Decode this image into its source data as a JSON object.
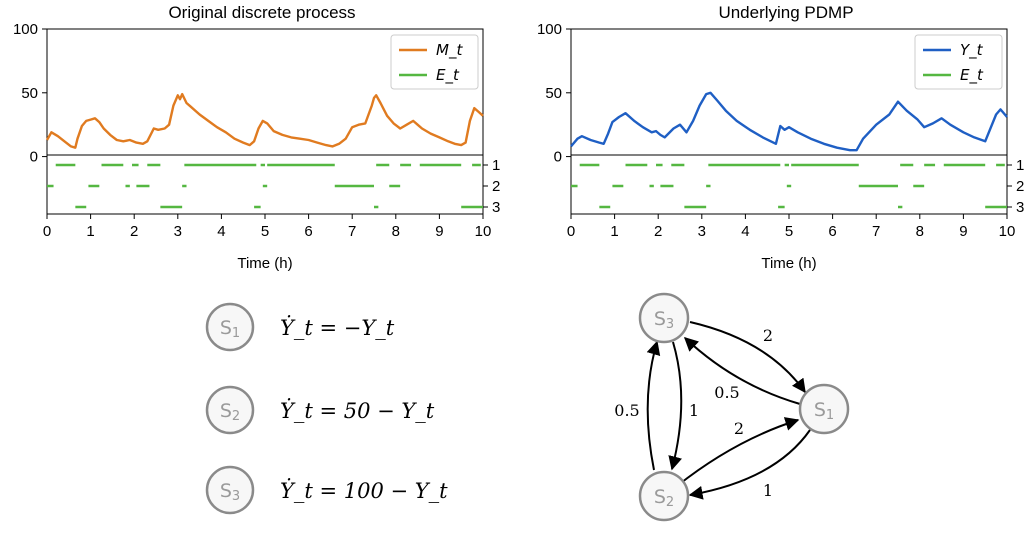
{
  "chart_data": [
    {
      "type": "line",
      "title": "Original discrete process",
      "xlabel": "Time (h)",
      "ylabel": "",
      "xlim": [
        0,
        10
      ],
      "ylim": [
        -45,
        100
      ],
      "x_ticks": [
        "0",
        "1",
        "2",
        "3",
        "4",
        "5",
        "6",
        "7",
        "8",
        "9",
        "10"
      ],
      "y_ticks": [
        "0",
        "50",
        "100"
      ],
      "legend_position": "top-right",
      "grid": false,
      "series": [
        {
          "name": "M_t",
          "color": "#e07b20",
          "x": [
            0,
            0.1,
            0.25,
            0.4,
            0.55,
            0.65,
            0.7,
            0.8,
            0.9,
            1.0,
            1.1,
            1.2,
            1.3,
            1.45,
            1.6,
            1.75,
            1.9,
            2.05,
            2.2,
            2.3,
            2.45,
            2.55,
            2.7,
            2.8,
            2.9,
            3.0,
            3.05,
            3.1,
            3.2,
            3.3,
            3.5,
            3.7,
            3.9,
            4.1,
            4.3,
            4.5,
            4.65,
            4.75,
            4.85,
            4.95,
            5.05,
            5.2,
            5.4,
            5.6,
            5.8,
            6.0,
            6.2,
            6.4,
            6.55,
            6.7,
            6.85,
            7.0,
            7.15,
            7.3,
            7.45,
            7.5,
            7.55,
            7.65,
            7.8,
            7.95,
            8.1,
            8.25,
            8.4,
            8.5,
            8.6,
            8.8,
            9.0,
            9.2,
            9.35,
            9.5,
            9.6,
            9.7,
            9.8,
            9.9,
            10.0
          ],
          "y": [
            13,
            19,
            16,
            12,
            8,
            7,
            14,
            24,
            28,
            29,
            30,
            27,
            22,
            17,
            13,
            12,
            13,
            11,
            10,
            12,
            22,
            21,
            22,
            25,
            40,
            48,
            45,
            49,
            42,
            39,
            33,
            28,
            23,
            19,
            14,
            11,
            9,
            12,
            22,
            28,
            26,
            20,
            17,
            15,
            14,
            13,
            11,
            9,
            8,
            10,
            14,
            23,
            25,
            26,
            40,
            46,
            48,
            42,
            32,
            26,
            22,
            25,
            28,
            25,
            22,
            18,
            15,
            12,
            10,
            9,
            11,
            28,
            38,
            35,
            32
          ]
        },
        {
          "name": "E_t",
          "color": "#55b741",
          "segments": [
            {
              "state": 1,
              "spans": [
                [
                  0.2,
                  0.65
                ],
                [
                  1.25,
                  1.75
                ],
                [
                  1.95,
                  2.1
                ],
                [
                  2.3,
                  2.6
                ],
                [
                  3.15,
                  4.8
                ],
                [
                  4.9,
                  5.0
                ],
                [
                  5.05,
                  6.6
                ],
                [
                  7.55,
                  7.85
                ],
                [
                  8.1,
                  8.35
                ],
                [
                  8.55,
                  9.5
                ],
                [
                  9.75,
                  9.95
                ]
              ]
            },
            {
              "state": 2,
              "spans": [
                [
                  0.0,
                  0.15
                ],
                [
                  0.95,
                  1.2
                ],
                [
                  1.8,
                  1.9
                ],
                [
                  2.05,
                  2.35
                ],
                [
                  3.1,
                  3.2
                ],
                [
                  4.95,
                  5.05
                ],
                [
                  6.6,
                  7.5
                ],
                [
                  7.85,
                  8.1
                ]
              ]
            },
            {
              "state": 3,
              "spans": [
                [
                  0.65,
                  0.9
                ],
                [
                  2.6,
                  3.1
                ],
                [
                  4.75,
                  4.9
                ],
                [
                  7.5,
                  7.6
                ],
                [
                  9.5,
                  10.0
                ]
              ]
            }
          ]
        }
      ],
      "state_labels": [
        "1",
        "2",
        "3"
      ]
    },
    {
      "type": "line",
      "title": "Underlying PDMP",
      "xlabel": "Time (h)",
      "ylabel": "",
      "xlim": [
        0,
        10
      ],
      "ylim": [
        -45,
        100
      ],
      "x_ticks": [
        "0",
        "1",
        "2",
        "3",
        "4",
        "5",
        "6",
        "7",
        "8",
        "9",
        "10"
      ],
      "y_ticks": [
        "0",
        "50",
        "100"
      ],
      "legend_position": "top-right",
      "grid": false,
      "series": [
        {
          "name": "Y_t",
          "color": "#1f5fc4",
          "x": [
            0,
            0.15,
            0.25,
            0.45,
            0.65,
            0.75,
            0.85,
            0.95,
            1.1,
            1.25,
            1.45,
            1.65,
            1.85,
            1.95,
            2.05,
            2.15,
            2.35,
            2.5,
            2.65,
            2.8,
            2.95,
            3.1,
            3.2,
            3.35,
            3.55,
            3.8,
            4.1,
            4.4,
            4.7,
            4.8,
            4.9,
            5.0,
            5.2,
            5.5,
            5.8,
            6.1,
            6.4,
            6.55,
            6.7,
            7.0,
            7.3,
            7.5,
            7.7,
            7.95,
            8.1,
            8.3,
            8.5,
            8.7,
            9.0,
            9.25,
            9.5,
            9.75,
            9.85,
            10.0
          ],
          "y": [
            8,
            14,
            16,
            13,
            11,
            10,
            18,
            27,
            31,
            34,
            28,
            23,
            19,
            20,
            17,
            15,
            22,
            25,
            19,
            28,
            40,
            49,
            50,
            44,
            36,
            28,
            21,
            15,
            10,
            24,
            21,
            23,
            19,
            14,
            10,
            7,
            5,
            5,
            14,
            25,
            33,
            43,
            36,
            29,
            23,
            26,
            30,
            25,
            19,
            15,
            12,
            33,
            37,
            31
          ]
        },
        {
          "name": "E_t",
          "color": "#55b741",
          "segments": [
            {
              "state": 1,
              "spans": [
                [
                  0.2,
                  0.65
                ],
                [
                  1.25,
                  1.75
                ],
                [
                  1.95,
                  2.1
                ],
                [
                  2.3,
                  2.6
                ],
                [
                  3.15,
                  4.8
                ],
                [
                  4.9,
                  5.0
                ],
                [
                  5.05,
                  6.6
                ],
                [
                  7.55,
                  7.85
                ],
                [
                  8.1,
                  8.35
                ],
                [
                  8.55,
                  9.5
                ],
                [
                  9.75,
                  9.95
                ]
              ]
            },
            {
              "state": 2,
              "spans": [
                [
                  0.0,
                  0.15
                ],
                [
                  0.95,
                  1.2
                ],
                [
                  1.8,
                  1.9
                ],
                [
                  2.05,
                  2.35
                ],
                [
                  3.1,
                  3.2
                ],
                [
                  4.95,
                  5.05
                ],
                [
                  6.6,
                  7.5
                ],
                [
                  7.85,
                  8.1
                ]
              ]
            },
            {
              "state": 3,
              "spans": [
                [
                  0.65,
                  0.9
                ],
                [
                  2.6,
                  3.1
                ],
                [
                  4.75,
                  4.9
                ],
                [
                  7.5,
                  7.6
                ],
                [
                  9.5,
                  10.0
                ]
              ]
            }
          ]
        }
      ],
      "state_labels": [
        "1",
        "2",
        "3"
      ]
    }
  ],
  "equations": [
    {
      "state": "S",
      "sub": "1",
      "text": "Ẏ_t = −Y_t"
    },
    {
      "state": "S",
      "sub": "2",
      "text": "Ẏ_t = 50 − Y_t"
    },
    {
      "state": "S",
      "sub": "3",
      "text": "Ẏ_t = 100 − Y_t"
    }
  ],
  "diagram": {
    "nodes": [
      {
        "id": "S3",
        "label": "S",
        "sub": "3"
      },
      {
        "id": "S1",
        "label": "S",
        "sub": "1"
      },
      {
        "id": "S2",
        "label": "S",
        "sub": "2"
      }
    ],
    "edges": [
      {
        "from": "S3",
        "to": "S1",
        "rate": "2"
      },
      {
        "from": "S1",
        "to": "S3",
        "rate": "0.5"
      },
      {
        "from": "S2",
        "to": "S1",
        "rate": "2"
      },
      {
        "from": "S1",
        "to": "S2",
        "rate": "1"
      },
      {
        "from": "S3",
        "to": "S2",
        "rate": "1"
      },
      {
        "from": "S2",
        "to": "S3",
        "rate": "0.5"
      }
    ]
  }
}
